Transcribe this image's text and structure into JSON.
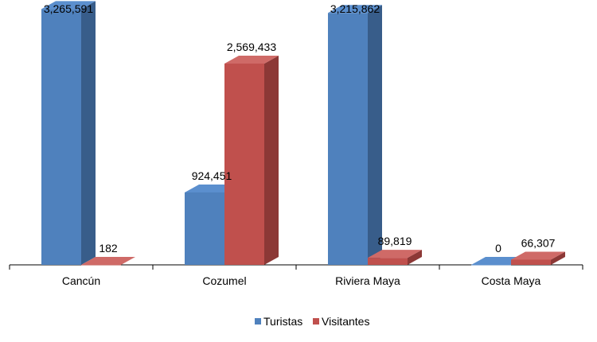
{
  "chart_data": {
    "type": "bar",
    "categories": [
      "Cancún",
      "Cozumel",
      "Riviera Maya",
      "Costa Maya"
    ],
    "series": [
      {
        "name": "Turistas",
        "values": [
          3265591,
          924451,
          3215862,
          0
        ],
        "labels": [
          "3,265,591",
          "924,451",
          "3,215,862",
          "0"
        ]
      },
      {
        "name": "Visitantes",
        "values": [
          182,
          2569433,
          89819,
          66307
        ],
        "labels": [
          "182",
          "2,569,433",
          "89,819",
          "66,307"
        ]
      }
    ],
    "title": "",
    "xlabel": "",
    "ylabel": "",
    "ylim": [
      0,
      3300000
    ],
    "legend_position": "bottom",
    "grid": false,
    "style": "3d-clustered-column"
  },
  "colors": {
    "Turistas": {
      "front": "#4f81bd",
      "side": "#385d8a",
      "top": "#5b8fce"
    },
    "Visitantes": {
      "front": "#c0504d",
      "side": "#8c3836",
      "top": "#cf6a67"
    }
  }
}
